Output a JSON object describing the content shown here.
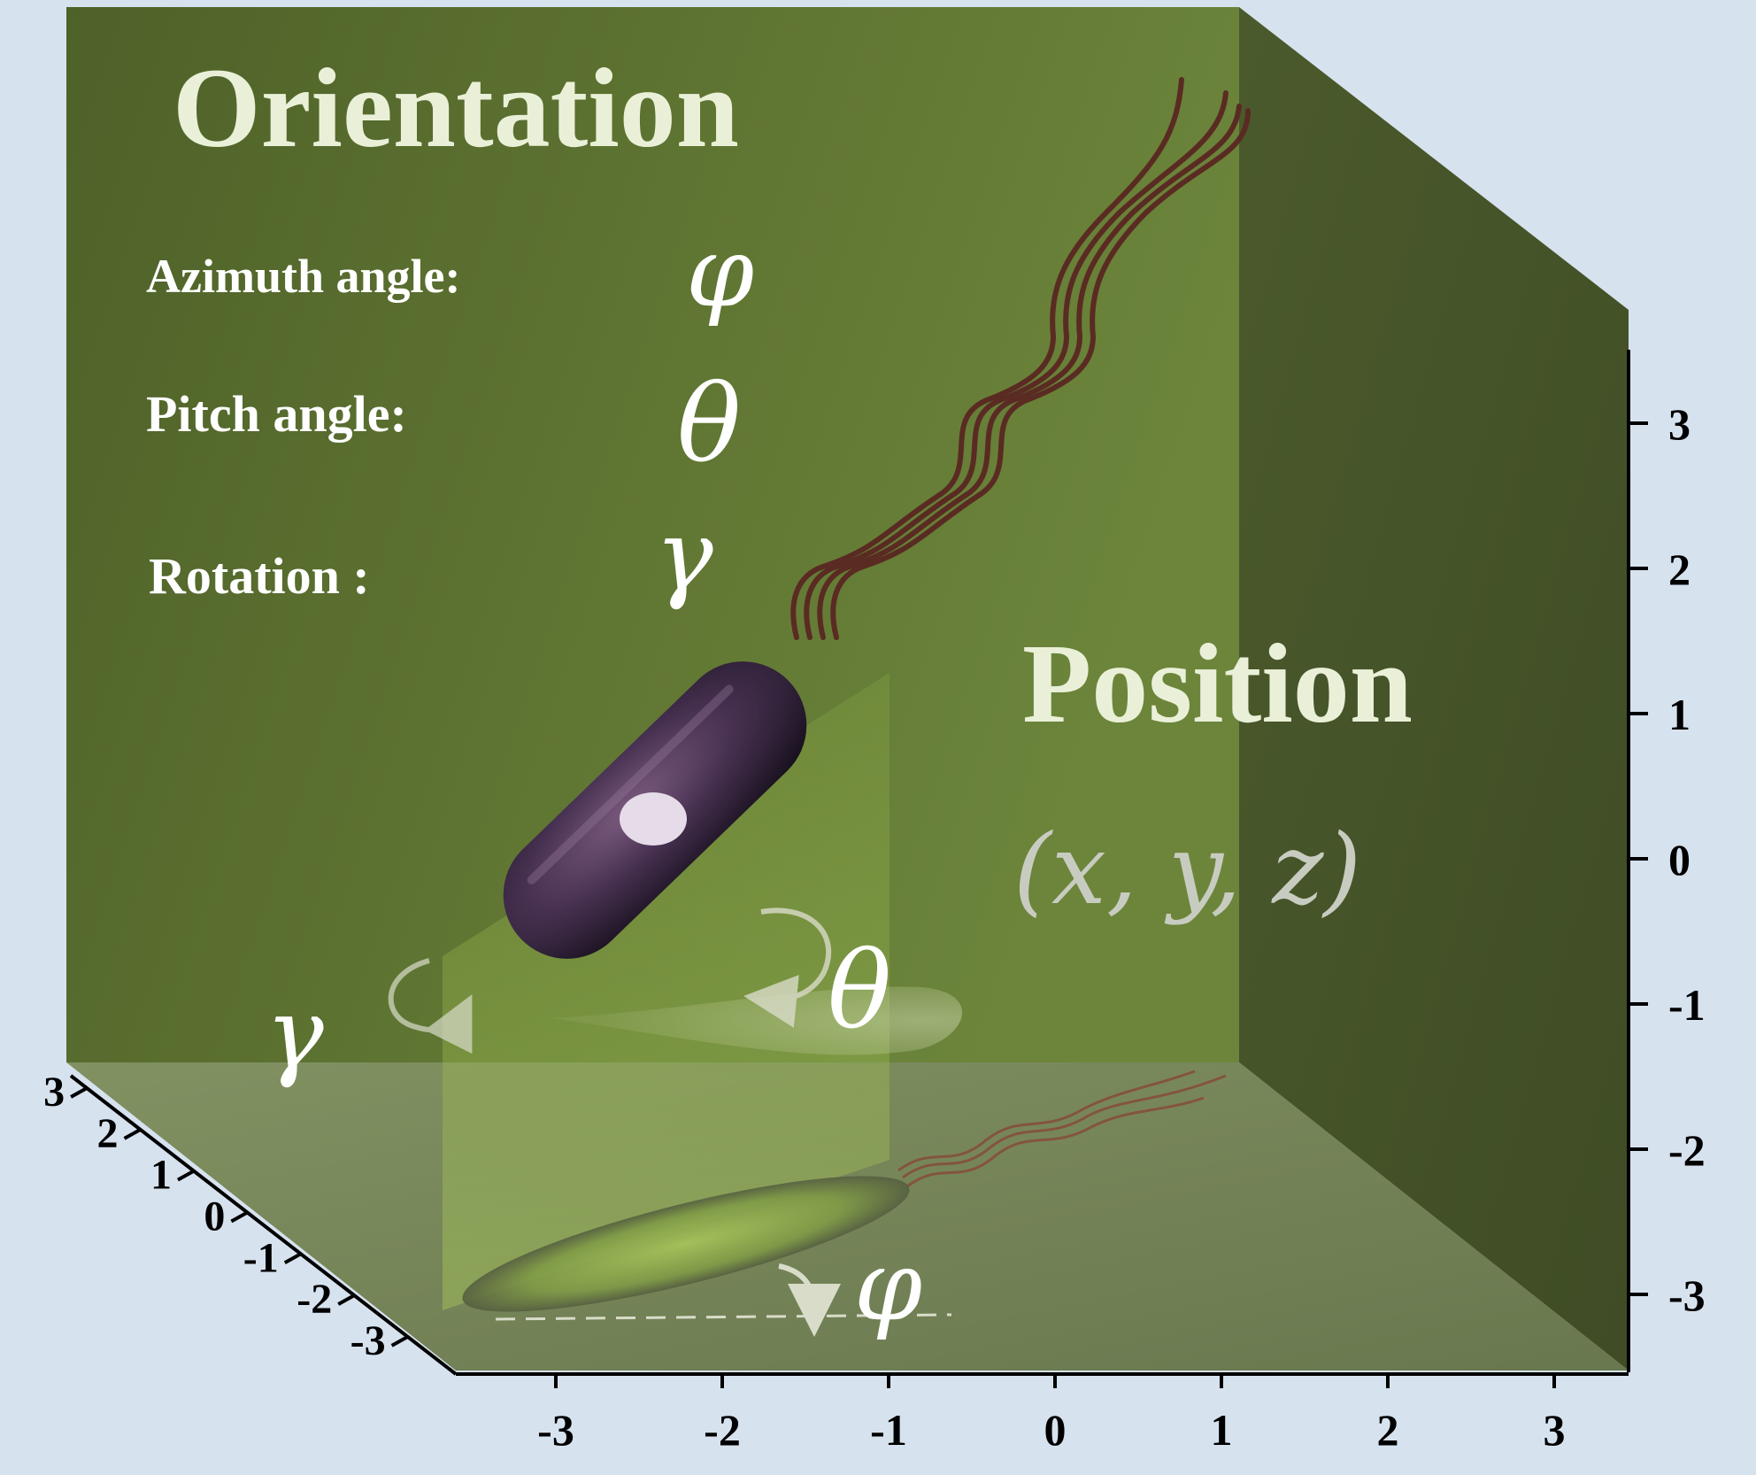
{
  "title": "Orientation",
  "orientation_labels": [
    {
      "label": "Azimuth angle:",
      "symbol": "φ"
    },
    {
      "label": "Pitch angle:",
      "symbol": "θ"
    },
    {
      "label": "Rotation :",
      "symbol": "γ"
    }
  ],
  "position": {
    "title": "Position",
    "coords": "(x,  y,  z)"
  },
  "scene_symbols": {
    "rotation": "γ",
    "pitch": "θ",
    "azimuth": "φ"
  },
  "axes": {
    "x_ticks": [
      "-3",
      "-2",
      "-1",
      "0",
      "1",
      "2",
      "3"
    ],
    "y_ticks": [
      "3",
      "2",
      "1",
      "0",
      "-1",
      "-2",
      "-3"
    ],
    "z_ticks": [
      "3",
      "2",
      "1",
      "0",
      "-1",
      "-2",
      "-3"
    ]
  },
  "colors": {
    "background": "#d7e2ef",
    "back_wall": "#56692f",
    "side_wall": "#45532a",
    "floor": "#6b7a48",
    "bacterium": "#3f2c46",
    "flagella": "#5a2b22"
  }
}
